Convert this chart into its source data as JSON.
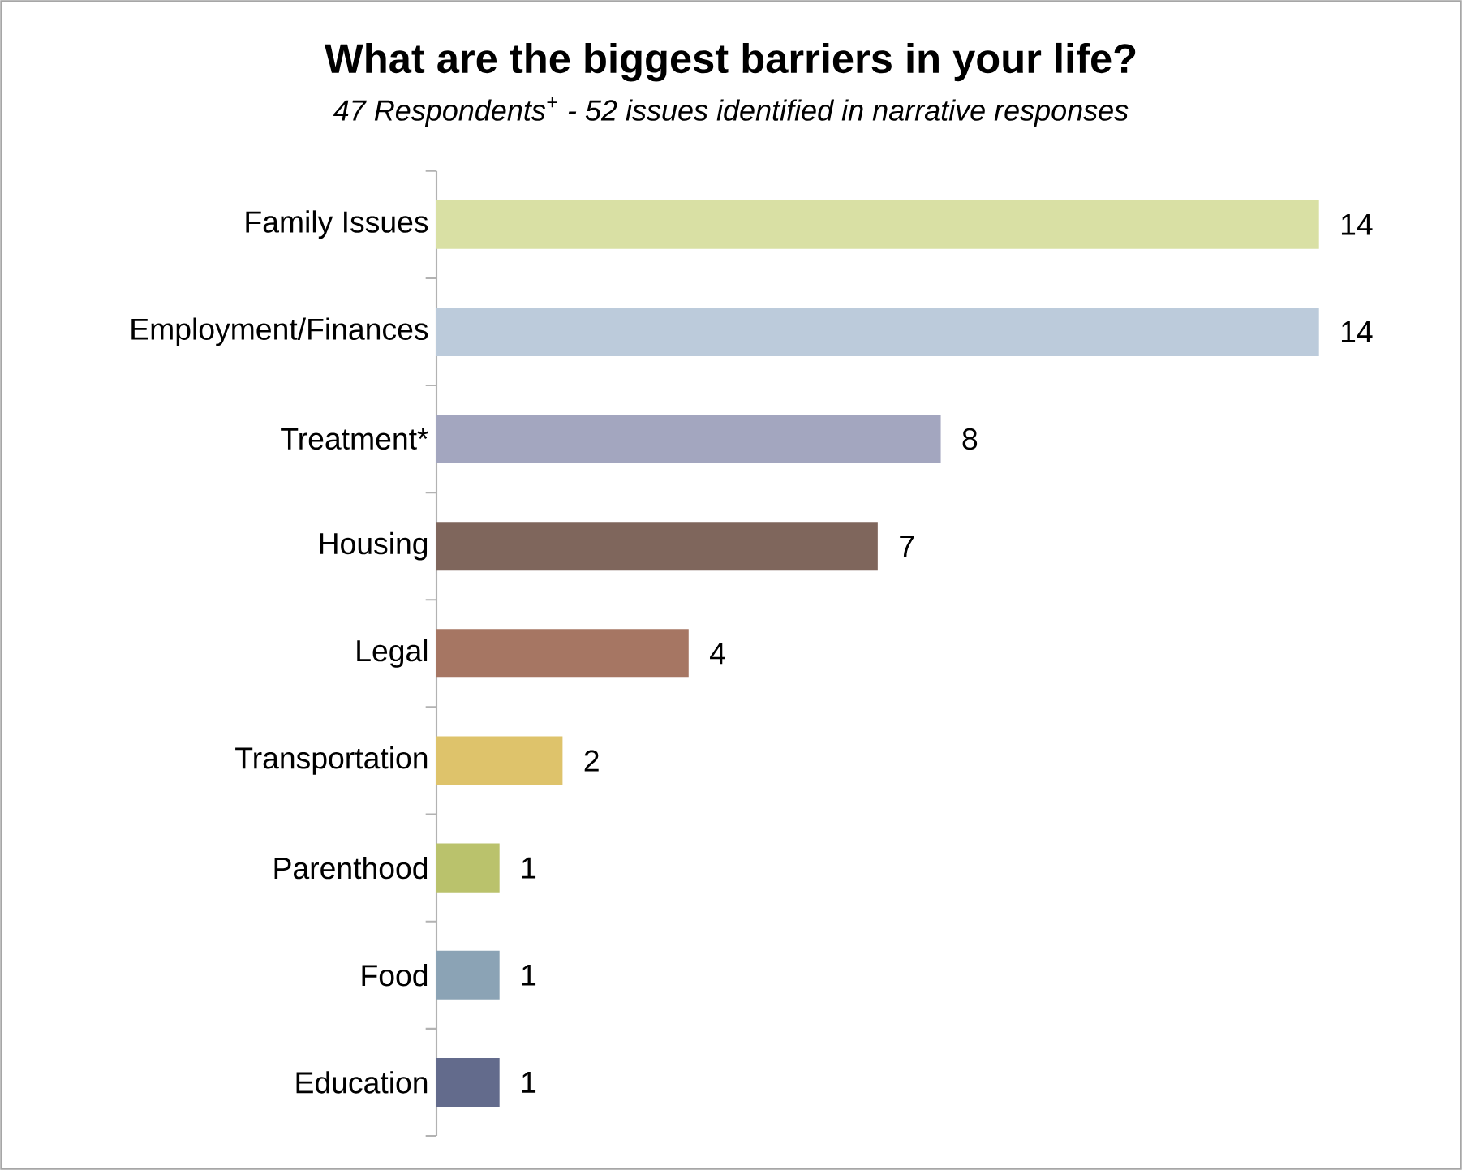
{
  "chart_data": {
    "type": "bar",
    "orientation": "horizontal",
    "title": "What are the biggest barriers in your life?",
    "subtitle": "47 Respondents$^{+}$ - 52 issues identified in narrative responses",
    "categories": [
      "Family Issues",
      "Employment/Finances",
      "Treatment*",
      "Housing",
      "Legal",
      "Transportation",
      "Parenthood",
      "Food",
      "Education"
    ],
    "values": [
      14,
      14,
      8,
      7,
      4,
      2,
      1,
      1,
      1
    ],
    "colors": [
      "#d9e0a4",
      "#bccbdb",
      "#a3a6bf",
      "#7f665c",
      "#a67663",
      "#dec36b",
      "#bac26c",
      "#8ba3b5",
      "#636b8c"
    ],
    "data_labels": true
  }
}
